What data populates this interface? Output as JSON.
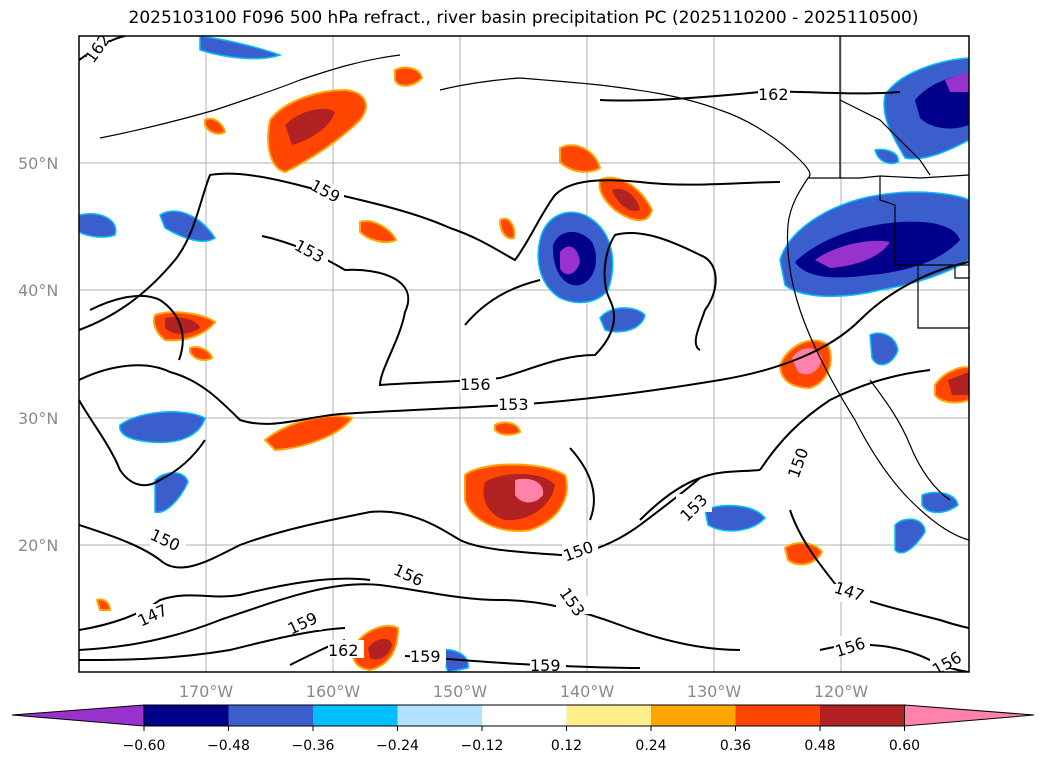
{
  "title": "2025103100 F096 500 hPa refract., river basin precipitation PC (2025110200 - 2025110500)",
  "map": {
    "lon_ticks": [
      "170°W",
      "160°W",
      "150°W",
      "140°W",
      "130°W",
      "120°W"
    ],
    "lat_ticks": [
      "50°N",
      "40°N",
      "30°N",
      "20°N"
    ],
    "contour_labels": [
      "162",
      "162",
      "159",
      "153",
      "156",
      "153",
      "150",
      "150",
      "153",
      "150",
      "147",
      "156",
      "159",
      "162",
      "159",
      "159",
      "147",
      "156",
      "156",
      "153"
    ],
    "gridlines": "on"
  },
  "colorbar": {
    "levels": [
      "−0.60",
      "−0.48",
      "−0.36",
      "−0.24",
      "−0.12",
      "0.12",
      "0.24",
      "0.36",
      "0.48",
      "0.60"
    ],
    "colors": [
      "#9932cc",
      "#00008b",
      "#3a5fcd",
      "#00bfff",
      "#b0e2ff",
      "#ffffff",
      "#ffec8b",
      "#ffa500",
      "#ff4500",
      "#b22222",
      "#ff82ab"
    ]
  }
}
